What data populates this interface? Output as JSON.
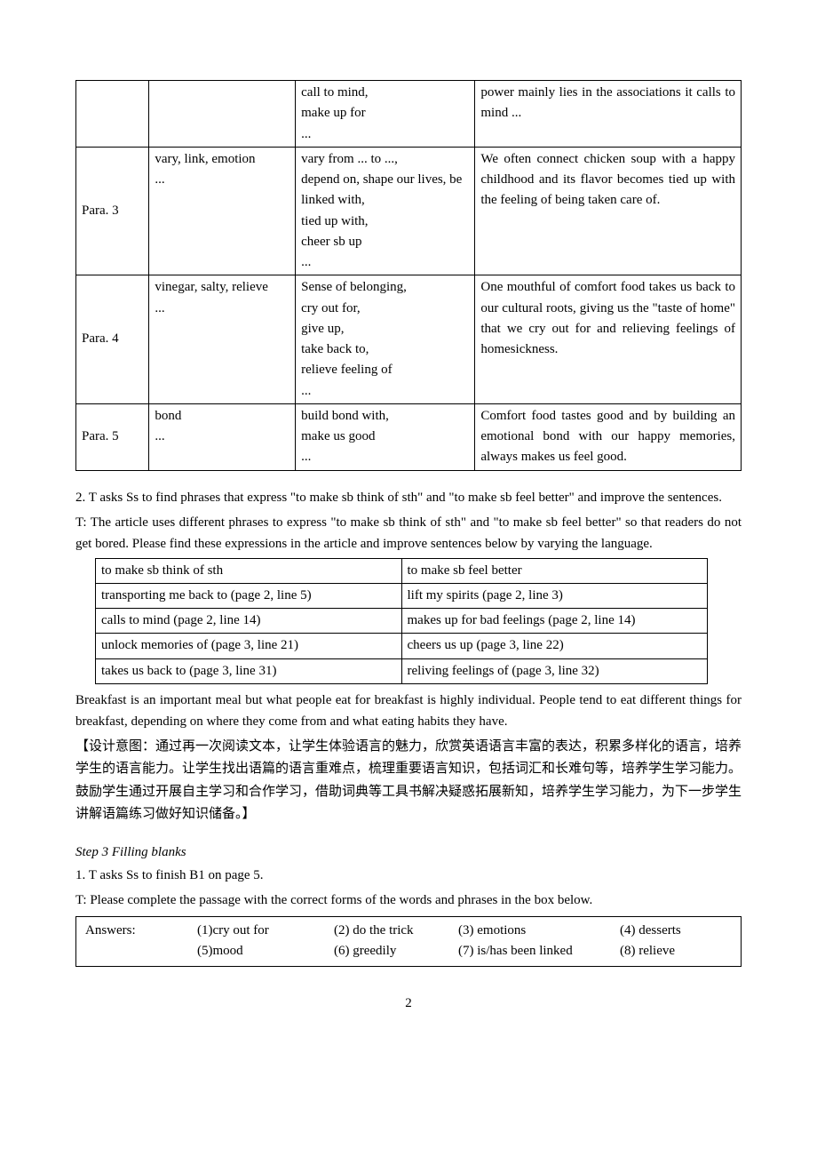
{
  "mainTable": {
    "rows": [
      {
        "para": "",
        "words": "",
        "phrases": "call to mind,\nmake up for\n...",
        "sentence": "power mainly lies in the associations it calls to mind ..."
      },
      {
        "para": "Para. 3",
        "words": "vary, link, emotion\n...",
        "phrases": "vary from ... to ...,\ndepend on, shape our lives, be linked with,\ntied up with,\ncheer sb up\n...",
        "sentence": "We often connect chicken soup with a happy childhood and its flavor becomes tied up with the feeling of being taken care of."
      },
      {
        "para": "Para. 4",
        "words": "vinegar, salty, relieve\n...",
        "phrases": "Sense of belonging,\ncry out for,\ngive up,\ntake back to,\nrelieve feeling of\n...",
        "sentence": "One mouthful of comfort food takes us back to our cultural roots, giving us the \"taste of home\" that we cry out for and relieving feelings of homesickness."
      },
      {
        "para": "Para. 5",
        "words": "bond\n...",
        "phrases": "build bond with,\nmake us good\n...",
        "sentence": "Comfort food tastes good and by building an emotional bond with our happy memories, always makes us feel good."
      }
    ]
  },
  "task2_intro": "2. T asks Ss to find phrases that express \"to make sb think of sth\" and \"to make sb feel better\" and improve the sentences.",
  "task2_t": "T: The article uses different phrases to express \"to make sb think of sth\" and \"to make sb feel better\" so that readers do not get bored. Please find these expressions in the article and improve sentences below by varying the language.",
  "phraseTable": {
    "head": {
      "left": "to make sb think of sth",
      "right": "to make sb feel better"
    },
    "rows": [
      {
        "left": "transporting me back to (page 2, line 5)",
        "right": "lift my spirits (page 2, line 3)"
      },
      {
        "left": "calls to mind (page 2, line 14)",
        "right": "makes up for bad feelings (page 2, line 14)"
      },
      {
        "left": "unlock memories of (page 3, line 21)",
        "right": "cheers us up (page 3, line 22)"
      },
      {
        "left": "takes us back to (page 3, line 31)",
        "right": "reliving feelings of (page 3, line 32)"
      }
    ]
  },
  "breakfast_para": "Breakfast is an important meal but what people eat for breakfast is highly individual. People tend to eat different things for breakfast, depending on where they come from and what eating habits they have.",
  "design_intent": "【设计意图：通过再一次阅读文本，让学生体验语言的魅力，欣赏英语语言丰富的表达，积累多样化的语言，培养学生的语言能力。让学生找出语篇的语言重难点，梳理重要语言知识，包括词汇和长难句等，培养学生学习能力。鼓励学生通过开展自主学习和合作学习，借助词典等工具书解决疑惑拓展新知，培养学生学习能力，为下一步学生讲解语篇练习做好知识储备。】",
  "step3_title": "Step 3 Filling blanks",
  "step3_line1": "1. T asks Ss to finish B1 on page 5.",
  "step3_line2": "T: Please complete the passage with the correct forms of the words and phrases in the box below.",
  "answers": {
    "label": "Answers:",
    "row1": {
      "a1": "(1)cry out for",
      "a2": "(2) do the trick",
      "a3": "(3) emotions",
      "a4": "(4) desserts"
    },
    "row2": {
      "a1": "(5)mood",
      "a2": "(6) greedily",
      "a3": "(7) is/has been linked",
      "a4": "(8) relieve"
    }
  },
  "page_number": "2"
}
